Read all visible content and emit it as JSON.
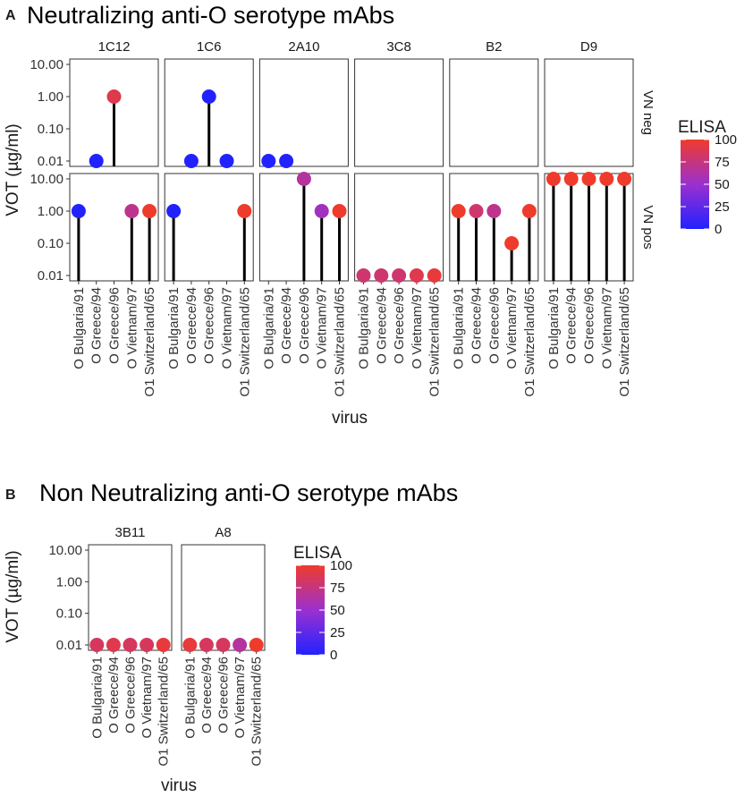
{
  "chart_data": [
    {
      "type": "scatter",
      "panel_label": "A",
      "title": "Neutralizing anti-O serotype mAbs",
      "xlabel": "virus",
      "ylabel": "VOT (µg/ml)",
      "y_scale": "log10",
      "ylim": [
        0.01,
        10
      ],
      "y_ticks": [
        "0.01",
        "0.10",
        "1.00",
        "10.00"
      ],
      "categories": [
        "O Bulgaria/91",
        "O Greece/94",
        "O Greece/96",
        "O Vietnam/97",
        "O1 Switzerland/65"
      ],
      "facet_columns": [
        "1C12",
        "1C6",
        "2A10",
        "3C8",
        "B2",
        "D9"
      ],
      "facet_rows": [
        "VN neg",
        "VN pos"
      ],
      "legend": {
        "title": "ELISA",
        "ticks": [
          "100",
          "75",
          "50",
          "25",
          "0"
        ],
        "min": 0,
        "max": 100,
        "low_color": "#2222ff",
        "mid_color": "#9b30d0",
        "high_color": "#ef3b2c"
      },
      "points": [
        {
          "facet": "1C12",
          "row": "VN neg",
          "virus": "O Greece/94",
          "vot": 0.01,
          "elisa": 0
        },
        {
          "facet": "1C12",
          "row": "VN neg",
          "virus": "O Greece/96",
          "vot": 1.0,
          "elisa": 90
        },
        {
          "facet": "1C6",
          "row": "VN neg",
          "virus": "O Greece/94",
          "vot": 0.01,
          "elisa": 0
        },
        {
          "facet": "1C6",
          "row": "VN neg",
          "virus": "O Greece/96",
          "vot": 1.0,
          "elisa": 0
        },
        {
          "facet": "1C6",
          "row": "VN neg",
          "virus": "O Vietnam/97",
          "vot": 0.01,
          "elisa": 0
        },
        {
          "facet": "2A10",
          "row": "VN neg",
          "virus": "O Bulgaria/91",
          "vot": 0.01,
          "elisa": 0
        },
        {
          "facet": "2A10",
          "row": "VN neg",
          "virus": "O Greece/94",
          "vot": 0.01,
          "elisa": 0
        },
        {
          "facet": "1C12",
          "row": "VN pos",
          "virus": "O Bulgaria/91",
          "vot": 1.0,
          "elisa": 0
        },
        {
          "facet": "1C12",
          "row": "VN pos",
          "virus": "O Vietnam/97",
          "vot": 1.0,
          "elisa": 70
        },
        {
          "facet": "1C12",
          "row": "VN pos",
          "virus": "O1 Switzerland/65",
          "vot": 1.0,
          "elisa": 100
        },
        {
          "facet": "1C6",
          "row": "VN pos",
          "virus": "O Bulgaria/91",
          "vot": 1.0,
          "elisa": 0
        },
        {
          "facet": "1C6",
          "row": "VN pos",
          "virus": "O1 Switzerland/65",
          "vot": 1.0,
          "elisa": 100
        },
        {
          "facet": "2A10",
          "row": "VN pos",
          "virus": "O Greece/96",
          "vot": 10.0,
          "elisa": 65
        },
        {
          "facet": "2A10",
          "row": "VN pos",
          "virus": "O Vietnam/97",
          "vot": 1.0,
          "elisa": 55
        },
        {
          "facet": "2A10",
          "row": "VN pos",
          "virus": "O1 Switzerland/65",
          "vot": 1.0,
          "elisa": 100
        },
        {
          "facet": "3C8",
          "row": "VN pos",
          "virus": "O Bulgaria/91",
          "vot": 0.01,
          "elisa": 80
        },
        {
          "facet": "3C8",
          "row": "VN pos",
          "virus": "O Greece/94",
          "vot": 0.01,
          "elisa": 80
        },
        {
          "facet": "3C8",
          "row": "VN pos",
          "virus": "O Greece/96",
          "vot": 0.01,
          "elisa": 80
        },
        {
          "facet": "3C8",
          "row": "VN pos",
          "virus": "O Vietnam/97",
          "vot": 0.01,
          "elisa": 90
        },
        {
          "facet": "3C8",
          "row": "VN pos",
          "virus": "O1 Switzerland/65",
          "vot": 0.01,
          "elisa": 95
        },
        {
          "facet": "B2",
          "row": "VN pos",
          "virus": "O Bulgaria/91",
          "vot": 1.0,
          "elisa": 100
        },
        {
          "facet": "B2",
          "row": "VN pos",
          "virus": "O Greece/94",
          "vot": 1.0,
          "elisa": 80
        },
        {
          "facet": "B2",
          "row": "VN pos",
          "virus": "O Greece/96",
          "vot": 1.0,
          "elisa": 70
        },
        {
          "facet": "B2",
          "row": "VN pos",
          "virus": "O Vietnam/97",
          "vot": 0.1,
          "elisa": 100
        },
        {
          "facet": "B2",
          "row": "VN pos",
          "virus": "O1 Switzerland/65",
          "vot": 1.0,
          "elisa": 100
        },
        {
          "facet": "D9",
          "row": "VN pos",
          "virus": "O Bulgaria/91",
          "vot": 10.0,
          "elisa": 100
        },
        {
          "facet": "D9",
          "row": "VN pos",
          "virus": "O Greece/94",
          "vot": 10.0,
          "elisa": 100
        },
        {
          "facet": "D9",
          "row": "VN pos",
          "virus": "O Greece/96",
          "vot": 10.0,
          "elisa": 100
        },
        {
          "facet": "D9",
          "row": "VN pos",
          "virus": "O Vietnam/97",
          "vot": 10.0,
          "elisa": 100
        },
        {
          "facet": "D9",
          "row": "VN pos",
          "virus": "O1 Switzerland/65",
          "vot": 10.0,
          "elisa": 100
        }
      ]
    },
    {
      "type": "scatter",
      "panel_label": "B",
      "title": "Non Neutralizing anti-O serotype mAbs",
      "xlabel": "virus",
      "ylabel": "VOT (µg/ml)",
      "y_scale": "log10",
      "ylim": [
        0.01,
        10
      ],
      "y_ticks": [
        "0.01",
        "0.10",
        "1.00",
        "10.00"
      ],
      "categories": [
        "O Bulgaria/91",
        "O Greece/94",
        "O Greece/96",
        "O Vietnam/97",
        "O1 Switzerland/65"
      ],
      "facet_columns": [
        "3B11",
        "A8"
      ],
      "facet_rows": [],
      "legend": {
        "title": "ELISA",
        "ticks": [
          "100",
          "75",
          "50",
          "25",
          "0"
        ],
        "min": 0,
        "max": 100,
        "low_color": "#2222ff",
        "mid_color": "#9b30d0",
        "high_color": "#ef3b2c"
      },
      "points": [
        {
          "facet": "3B11",
          "virus": "O Bulgaria/91",
          "vot": 0.01,
          "elisa": 85
        },
        {
          "facet": "3B11",
          "virus": "O Greece/94",
          "vot": 0.01,
          "elisa": 90
        },
        {
          "facet": "3B11",
          "virus": "O Greece/96",
          "vot": 0.01,
          "elisa": 85
        },
        {
          "facet": "3B11",
          "virus": "O Vietnam/97",
          "vot": 0.01,
          "elisa": 85
        },
        {
          "facet": "3B11",
          "virus": "O1 Switzerland/65",
          "vot": 0.01,
          "elisa": 95
        },
        {
          "facet": "A8",
          "virus": "O Bulgaria/91",
          "vot": 0.01,
          "elisa": 95
        },
        {
          "facet": "A8",
          "virus": "O Greece/94",
          "vot": 0.01,
          "elisa": 85
        },
        {
          "facet": "A8",
          "virus": "O Greece/96",
          "vot": 0.01,
          "elisa": 85
        },
        {
          "facet": "A8",
          "virus": "O Vietnam/97",
          "vot": 0.01,
          "elisa": 65
        },
        {
          "facet": "A8",
          "virus": "O1 Switzerland/65",
          "vot": 0.01,
          "elisa": 100
        }
      ]
    }
  ]
}
